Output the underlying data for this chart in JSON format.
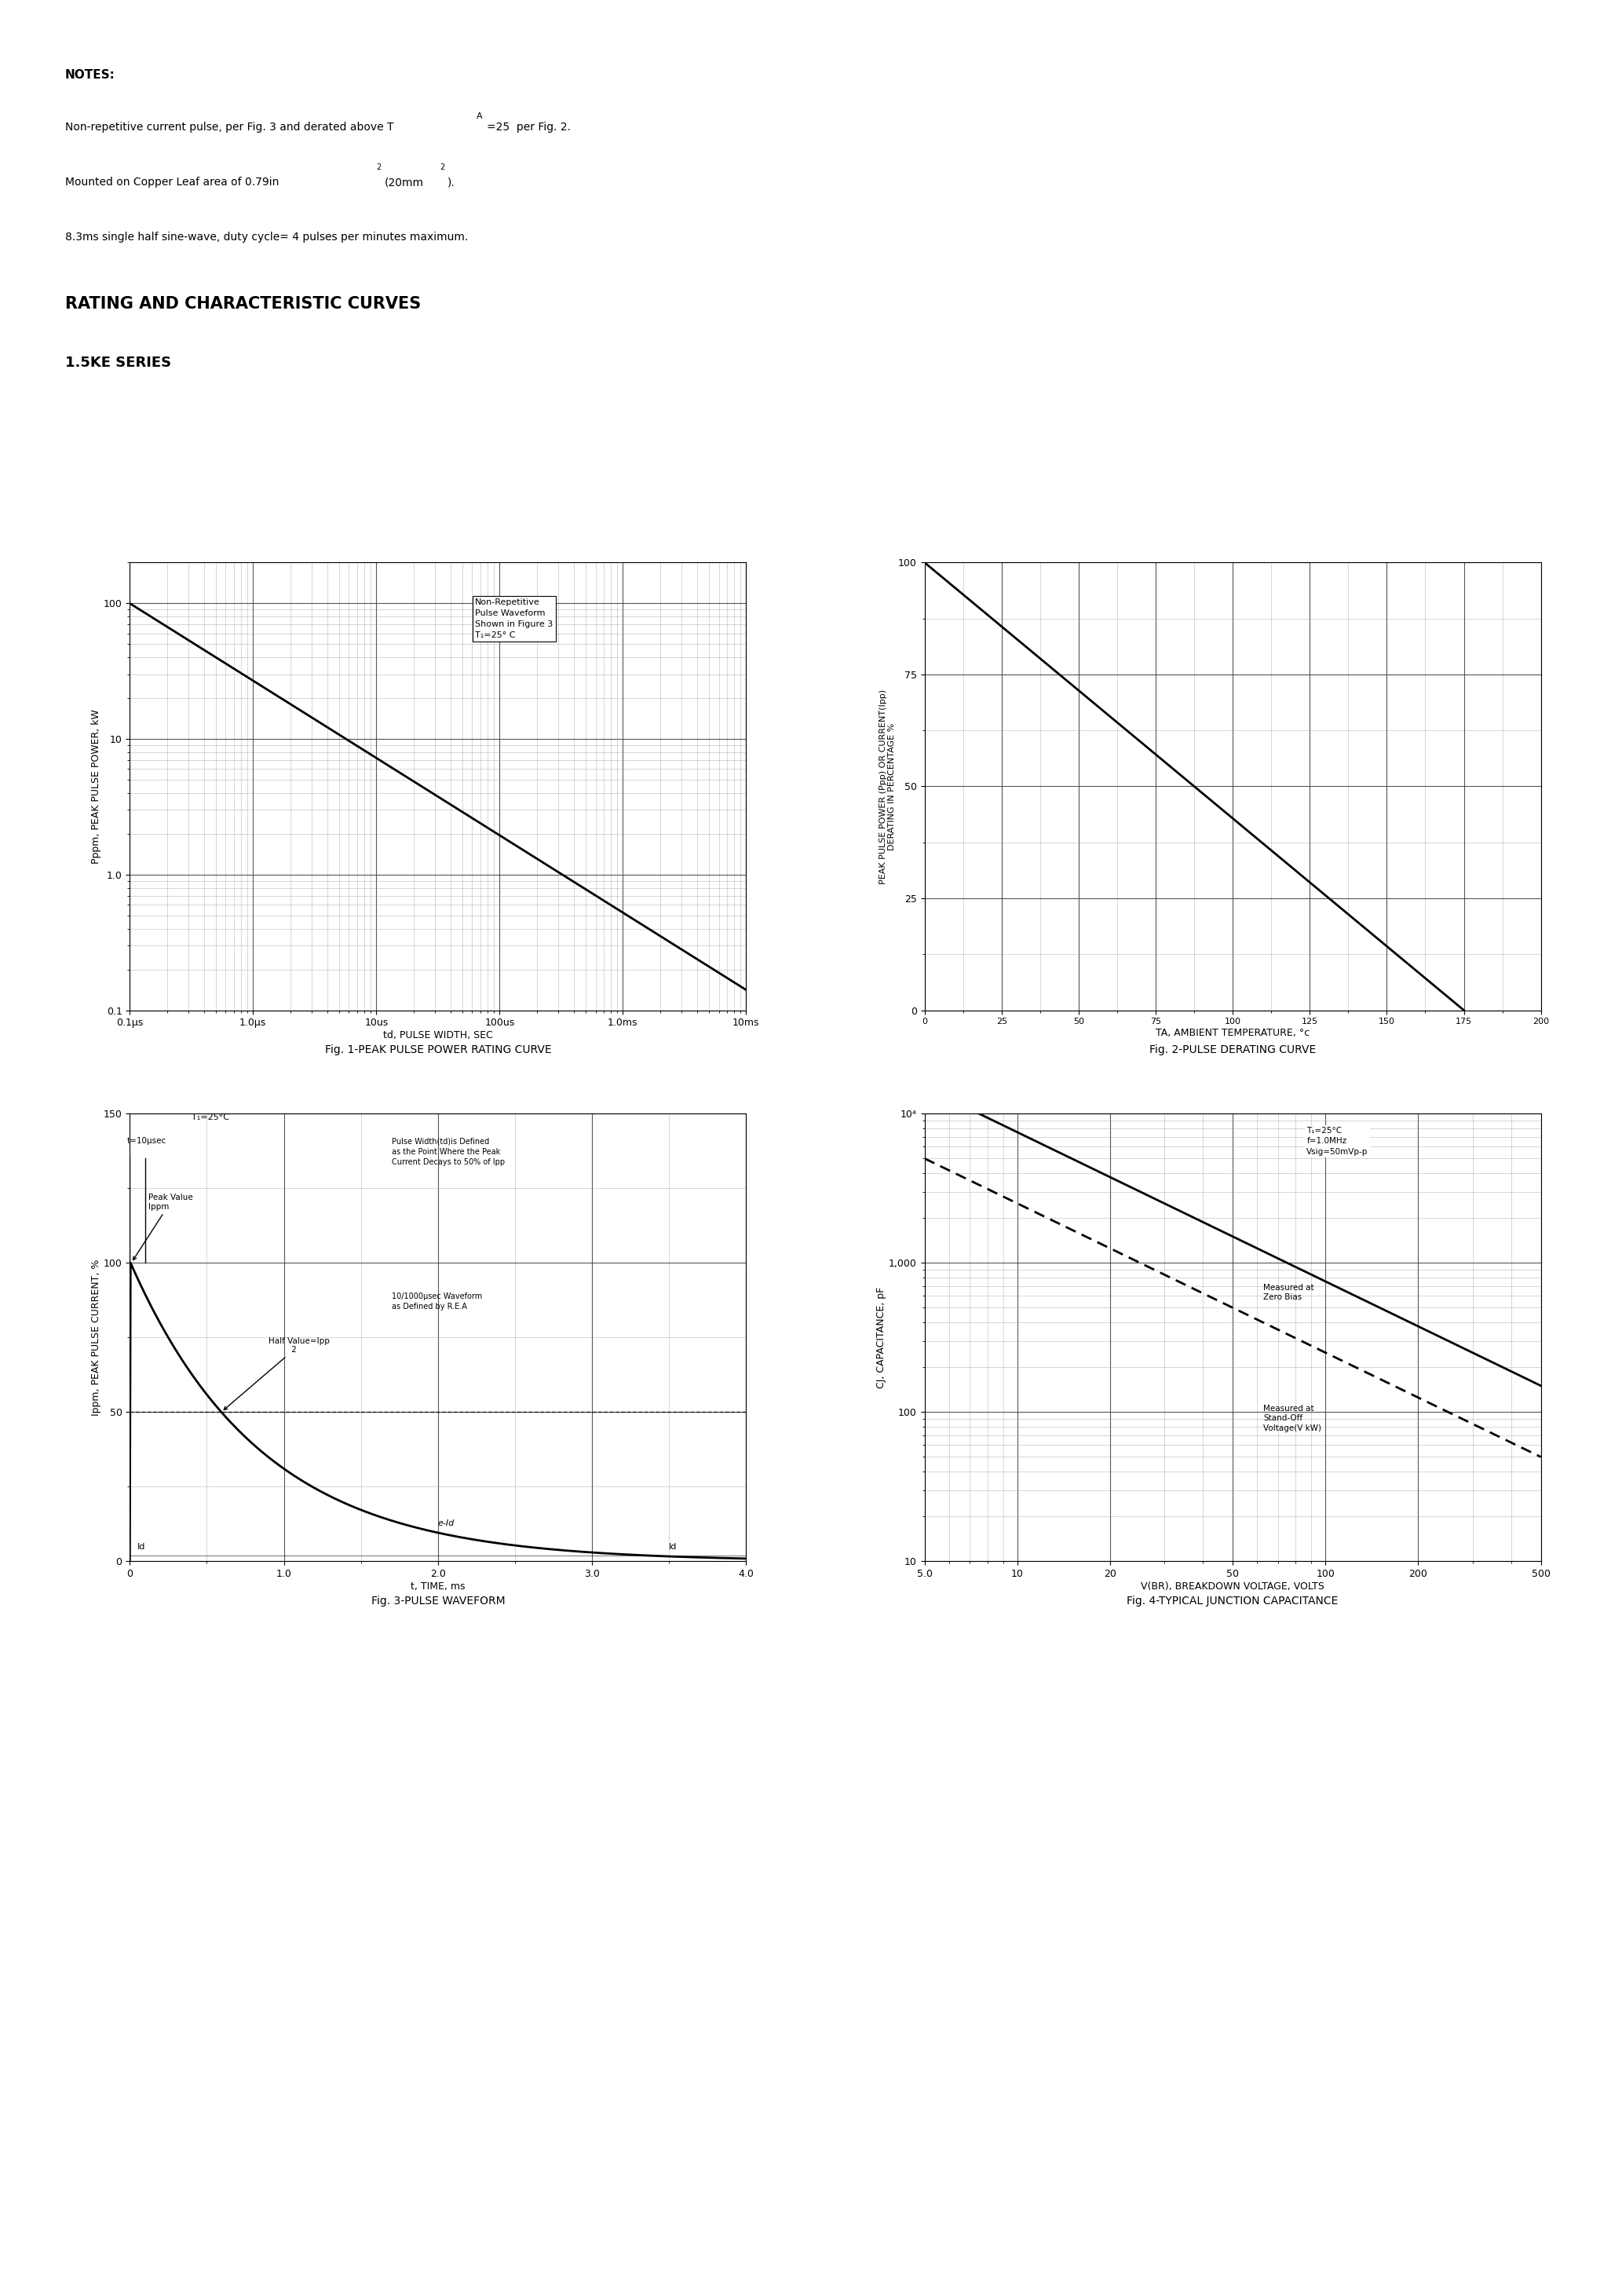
{
  "bg": "#ffffff",
  "notes_title": "NOTES:",
  "note1": "Non-repetitive current pulse, per Fig. 3 and derated above TA=25  per Fig. 2.",
  "note2": "Mounted on Copper Leaf area of 0.79in2(20mm2).",
  "note3": "8.3ms single half sine-wave, duty cycle= 4 pulses per minutes maximum.",
  "heading1": "RATING AND CHARACTERISTIC CURVES",
  "heading2": "1.5KE SERIES",
  "fig1_caption": "Fig. 1-PEAK PULSE POWER RATING CURVE",
  "fig2_caption": "Fig. 2-PULSE DERATING CURVE",
  "fig3_caption": "Fig. 3-PULSE WAVEFORM",
  "fig4_caption": "Fig. 4-TYPICAL JUNCTION CAPACITANCE",
  "fig1_ylabel": "Pppm, PEAK PULSE POWER, kW",
  "fig1_xlabel": "td, PULSE WIDTH, SEC",
  "fig1_legend": [
    "Non-Repetitive",
    "Pulse Waveform",
    "Shown in Figure 3",
    "TA=25° C"
  ],
  "fig2_ylabel": "PEAK PULSE POWER (Ppp) OR CURRENT(Ipp)\nDERATING IN PERCENTAGE %",
  "fig2_xlabel": "TA, AMBIENT TEMPERATURE, °c",
  "fig3_ylabel": "Ippm, PEAK PULSE CURRENT, %",
  "fig3_xlabel": "t, TIME, ms",
  "fig4_ylabel": "CJ, CAPACITANCE, pF",
  "fig4_xlabel": "V(BR), BREAKDOWN VOLTAGE, VOLTS"
}
